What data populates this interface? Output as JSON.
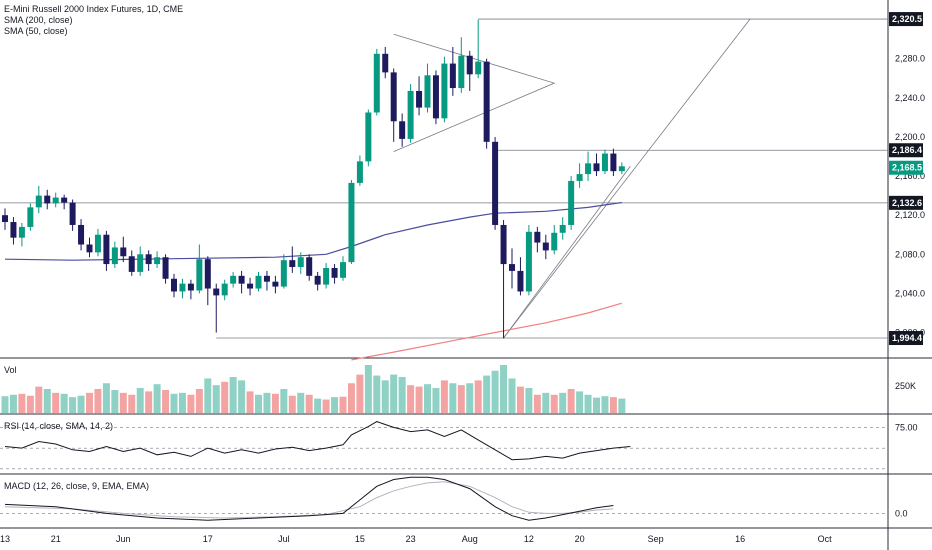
{
  "legend": {
    "title": "E-Mini Russell 2000 Index Futures, 1D, CME",
    "sma200": "SMA (200, close)",
    "sma50": "SMA (50, close)",
    "vol": "Vol",
    "rsi": "RSI (14, close, SMA, 14, 2)",
    "macd": "MACD (12, 26, close, 9, EMA, EMA)"
  },
  "colors": {
    "bull": "#089981",
    "bear": "#1e1a5e",
    "vol_up": "#8fd1c4",
    "vol_down": "#f4a3a3",
    "sma50": "#4a4e9e",
    "sma200": "#f08080",
    "line": "#2a2e39",
    "badge_dark": "#131722",
    "badge_green": "#089981"
  },
  "price_axis": {
    "ticks": [
      "2,280.0",
      "2,240.0",
      "2,200.0",
      "2,160.0",
      "2,120.0",
      "2,080.0",
      "2,040.0",
      "2,000.0"
    ],
    "badges": [
      {
        "label": "2,320.5",
        "value": 2320.5,
        "style": "dark"
      },
      {
        "label": "2,186.4",
        "value": 2186.4,
        "style": "dark"
      },
      {
        "label": "2,168.5",
        "value": 2168.5,
        "style": "green"
      },
      {
        "label": "2,132.6",
        "value": 2132.6,
        "style": "dark"
      },
      {
        "label": "1,994.4",
        "value": 1994.4,
        "style": "dark"
      }
    ]
  },
  "volume_axis": {
    "label": "250K"
  },
  "rsi_axis": {
    "label": "75.00"
  },
  "macd_axis": {
    "label": "0.0"
  },
  "x_axis": {
    "labels": [
      {
        "label": "13",
        "index": 0
      },
      {
        "label": "21",
        "index": 6
      },
      {
        "label": "Jun",
        "index": 14
      },
      {
        "label": "17",
        "index": 24
      },
      {
        "label": "Jul",
        "index": 33
      },
      {
        "label": "15",
        "index": 42
      },
      {
        "label": "23",
        "index": 48
      },
      {
        "label": "Aug",
        "index": 55
      },
      {
        "label": "12",
        "index": 62
      },
      {
        "label": "20",
        "index": 68
      },
      {
        "label": "Sep",
        "index": 77
      },
      {
        "label": "16",
        "index": 87
      },
      {
        "label": "Oct",
        "index": 97
      }
    ]
  },
  "chart_data": {
    "type": "candlestick",
    "title": "E-Mini Russell 2000 Index Futures, 1D, CME",
    "ylim": [
      1975,
      2340
    ],
    "candles": [
      [
        2120,
        2113,
        2127,
        2105
      ],
      [
        2113,
        2097,
        2118,
        2090
      ],
      [
        2097,
        2108,
        2112,
        2088
      ],
      [
        2108,
        2128,
        2132,
        2104
      ],
      [
        2128,
        2140,
        2150,
        2122
      ],
      [
        2140,
        2132,
        2146,
        2126
      ],
      [
        2132,
        2138,
        2143,
        2128
      ],
      [
        2138,
        2133,
        2141,
        2126
      ],
      [
        2133,
        2110,
        2136,
        2104
      ],
      [
        2110,
        2090,
        2116,
        2084
      ],
      [
        2090,
        2082,
        2097,
        2077
      ],
      [
        2082,
        2100,
        2106,
        2078
      ],
      [
        2100,
        2070,
        2104,
        2063
      ],
      [
        2070,
        2087,
        2093,
        2066
      ],
      [
        2087,
        2078,
        2098,
        2072
      ],
      [
        2078,
        2062,
        2084,
        2058
      ],
      [
        2062,
        2080,
        2088,
        2058
      ],
      [
        2080,
        2070,
        2084,
        2063
      ],
      [
        2070,
        2077,
        2083,
        2066
      ],
      [
        2077,
        2055,
        2080,
        2050
      ],
      [
        2055,
        2042,
        2060,
        2036
      ],
      [
        2042,
        2050,
        2055,
        2035
      ],
      [
        2050,
        2043,
        2054,
        2034
      ],
      [
        2043,
        2075,
        2090,
        2040
      ],
      [
        2075,
        2045,
        2078,
        2028
      ],
      [
        2045,
        2038,
        2050,
        2000
      ],
      [
        2038,
        2050,
        2054,
        2033
      ],
      [
        2050,
        2058,
        2062,
        2046
      ],
      [
        2058,
        2050,
        2063,
        2040
      ],
      [
        2050,
        2045,
        2056,
        2038
      ],
      [
        2045,
        2058,
        2062,
        2042
      ],
      [
        2058,
        2052,
        2063,
        2043
      ],
      [
        2052,
        2047,
        2058,
        2040
      ],
      [
        2047,
        2074,
        2080,
        2045
      ],
      [
        2074,
        2067,
        2088,
        2061
      ],
      [
        2067,
        2077,
        2082,
        2060
      ],
      [
        2077,
        2058,
        2080,
        2053
      ],
      [
        2058,
        2049,
        2062,
        2043
      ],
      [
        2049,
        2066,
        2071,
        2045
      ],
      [
        2066,
        2056,
        2070,
        2050
      ],
      [
        2056,
        2072,
        2078,
        2053
      ],
      [
        2072,
        2153,
        2156,
        2070
      ],
      [
        2153,
        2175,
        2181,
        2150
      ],
      [
        2175,
        2225,
        2228,
        2170
      ],
      [
        2225,
        2285,
        2290,
        2222
      ],
      [
        2285,
        2266,
        2292,
        2260
      ],
      [
        2266,
        2216,
        2270,
        2195
      ],
      [
        2216,
        2198,
        2224,
        2190
      ],
      [
        2198,
        2247,
        2254,
        2194
      ],
      [
        2247,
        2230,
        2262,
        2222
      ],
      [
        2230,
        2263,
        2275,
        2225
      ],
      [
        2263,
        2219,
        2268,
        2213
      ],
      [
        2219,
        2275,
        2282,
        2215
      ],
      [
        2275,
        2250,
        2292,
        2242
      ],
      [
        2250,
        2283,
        2302,
        2245
      ],
      [
        2283,
        2264,
        2288,
        2247
      ],
      [
        2264,
        2277,
        2320,
        2260
      ],
      [
        2277,
        2195,
        2280,
        2188
      ],
      [
        2195,
        2110,
        2200,
        2105
      ],
      [
        2110,
        2070,
        2115,
        1994
      ],
      [
        2070,
        2063,
        2086,
        2045
      ],
      [
        2063,
        2042,
        2077,
        2038
      ],
      [
        2042,
        2103,
        2110,
        2038
      ],
      [
        2103,
        2092,
        2108,
        2082
      ],
      [
        2092,
        2084,
        2100,
        2075
      ],
      [
        2084,
        2102,
        2110,
        2080
      ],
      [
        2102,
        2110,
        2118,
        2095
      ],
      [
        2110,
        2155,
        2160,
        2105
      ],
      [
        2155,
        2162,
        2173,
        2148
      ],
      [
        2162,
        2173,
        2185,
        2155
      ],
      [
        2173,
        2165,
        2183,
        2160
      ],
      [
        2165,
        2183,
        2187,
        2162
      ],
      [
        2183,
        2165,
        2188,
        2160
      ],
      [
        2165,
        2170,
        2174,
        2162
      ]
    ],
    "sma50": [
      [
        0,
        2075
      ],
      [
        8,
        2074
      ],
      [
        16,
        2075
      ],
      [
        24,
        2076
      ],
      [
        32,
        2077
      ],
      [
        38,
        2080
      ],
      [
        41,
        2088
      ],
      [
        45,
        2100
      ],
      [
        50,
        2110
      ],
      [
        55,
        2118
      ],
      [
        58,
        2122
      ],
      [
        64,
        2124
      ],
      [
        69,
        2128
      ],
      [
        73,
        2133
      ]
    ],
    "sma200": [
      [
        41,
        1972
      ],
      [
        46,
        1980
      ],
      [
        52,
        1990
      ],
      [
        58,
        2000
      ],
      [
        64,
        2010
      ],
      [
        69,
        2020
      ],
      [
        73,
        2030
      ]
    ],
    "volume": [
      [
        1,
        0.35
      ],
      [
        1,
        0.38
      ],
      [
        0,
        0.4
      ],
      [
        0,
        0.36
      ],
      [
        0,
        0.55
      ],
      [
        1,
        0.5
      ],
      [
        0,
        0.42
      ],
      [
        1,
        0.4
      ],
      [
        1,
        0.33
      ],
      [
        1,
        0.36
      ],
      [
        0,
        0.42
      ],
      [
        0,
        0.5
      ],
      [
        1,
        0.62
      ],
      [
        1,
        0.48
      ],
      [
        0,
        0.42
      ],
      [
        0,
        0.38
      ],
      [
        1,
        0.52
      ],
      [
        0,
        0.45
      ],
      [
        1,
        0.6
      ],
      [
        0,
        0.48
      ],
      [
        1,
        0.4
      ],
      [
        1,
        0.42
      ],
      [
        0,
        0.38
      ],
      [
        0,
        0.5
      ],
      [
        1,
        0.72
      ],
      [
        1,
        0.58
      ],
      [
        0,
        0.65
      ],
      [
        1,
        0.75
      ],
      [
        1,
        0.68
      ],
      [
        0,
        0.45
      ],
      [
        1,
        0.38
      ],
      [
        1,
        0.42
      ],
      [
        0,
        0.4
      ],
      [
        1,
        0.5
      ],
      [
        0,
        0.36
      ],
      [
        1,
        0.42
      ],
      [
        0,
        0.38
      ],
      [
        1,
        0.3
      ],
      [
        0,
        0.28
      ],
      [
        1,
        0.33
      ],
      [
        0,
        0.34
      ],
      [
        0,
        0.62
      ],
      [
        0,
        0.8
      ],
      [
        1,
        1.0
      ],
      [
        1,
        0.78
      ],
      [
        1,
        0.68
      ],
      [
        1,
        0.8
      ],
      [
        1,
        0.75
      ],
      [
        0,
        0.58
      ],
      [
        0,
        0.55
      ],
      [
        1,
        0.6
      ],
      [
        1,
        0.52
      ],
      [
        0,
        0.68
      ],
      [
        1,
        0.62
      ],
      [
        0,
        0.58
      ],
      [
        1,
        0.62
      ],
      [
        0,
        0.68
      ],
      [
        1,
        0.78
      ],
      [
        1,
        0.88
      ],
      [
        1,
        1.0
      ],
      [
        1,
        0.72
      ],
      [
        0,
        0.55
      ],
      [
        1,
        0.52
      ],
      [
        0,
        0.38
      ],
      [
        1,
        0.42
      ],
      [
        0,
        0.38
      ],
      [
        1,
        0.42
      ],
      [
        0,
        0.5
      ],
      [
        1,
        0.45
      ],
      [
        1,
        0.38
      ],
      [
        1,
        0.32
      ],
      [
        1,
        0.35
      ],
      [
        0,
        0.33
      ],
      [
        1,
        0.3
      ]
    ],
    "rsi": [
      [
        0,
        52
      ],
      [
        2,
        50
      ],
      [
        4,
        58
      ],
      [
        6,
        55
      ],
      [
        8,
        48
      ],
      [
        10,
        46
      ],
      [
        12,
        52
      ],
      [
        14,
        46
      ],
      [
        16,
        50
      ],
      [
        18,
        42
      ],
      [
        20,
        45
      ],
      [
        22,
        40
      ],
      [
        24,
        50
      ],
      [
        26,
        44
      ],
      [
        28,
        48
      ],
      [
        30,
        44
      ],
      [
        32,
        49
      ],
      [
        34,
        51
      ],
      [
        36,
        47
      ],
      [
        38,
        50
      ],
      [
        40,
        54
      ],
      [
        41,
        66
      ],
      [
        43,
        76
      ],
      [
        44,
        82
      ],
      [
        46,
        75
      ],
      [
        48,
        70
      ],
      [
        50,
        72
      ],
      [
        52,
        64
      ],
      [
        54,
        72
      ],
      [
        56,
        60
      ],
      [
        58,
        48
      ],
      [
        60,
        36
      ],
      [
        62,
        37
      ],
      [
        64,
        40
      ],
      [
        66,
        38
      ],
      [
        68,
        44
      ],
      [
        70,
        47
      ],
      [
        72,
        50
      ],
      [
        74,
        52
      ]
    ],
    "macd": [
      [
        0,
        8
      ],
      [
        6,
        6
      ],
      [
        12,
        0
      ],
      [
        18,
        -4
      ],
      [
        24,
        -6
      ],
      [
        30,
        -4
      ],
      [
        36,
        -2
      ],
      [
        40,
        0
      ],
      [
        42,
        12
      ],
      [
        44,
        24
      ],
      [
        46,
        30
      ],
      [
        48,
        32
      ],
      [
        50,
        32
      ],
      [
        52,
        30
      ],
      [
        55,
        22
      ],
      [
        58,
        6
      ],
      [
        60,
        -2
      ],
      [
        62,
        -6
      ],
      [
        64,
        -4
      ],
      [
        66,
        -1
      ],
      [
        68,
        2
      ],
      [
        70,
        5
      ],
      [
        72,
        7
      ]
    ],
    "macd_signal": [
      [
        0,
        6
      ],
      [
        8,
        4
      ],
      [
        14,
        0
      ],
      [
        20,
        -3
      ],
      [
        26,
        -4
      ],
      [
        32,
        -3
      ],
      [
        38,
        -1
      ],
      [
        42,
        6
      ],
      [
        44,
        14
      ],
      [
        46,
        20
      ],
      [
        48,
        24
      ],
      [
        50,
        27
      ],
      [
        52,
        28
      ],
      [
        55,
        24
      ],
      [
        58,
        14
      ],
      [
        60,
        6
      ],
      [
        62,
        1
      ],
      [
        64,
        0
      ],
      [
        66,
        0
      ],
      [
        68,
        1
      ],
      [
        70,
        3
      ],
      [
        72,
        4
      ]
    ]
  }
}
